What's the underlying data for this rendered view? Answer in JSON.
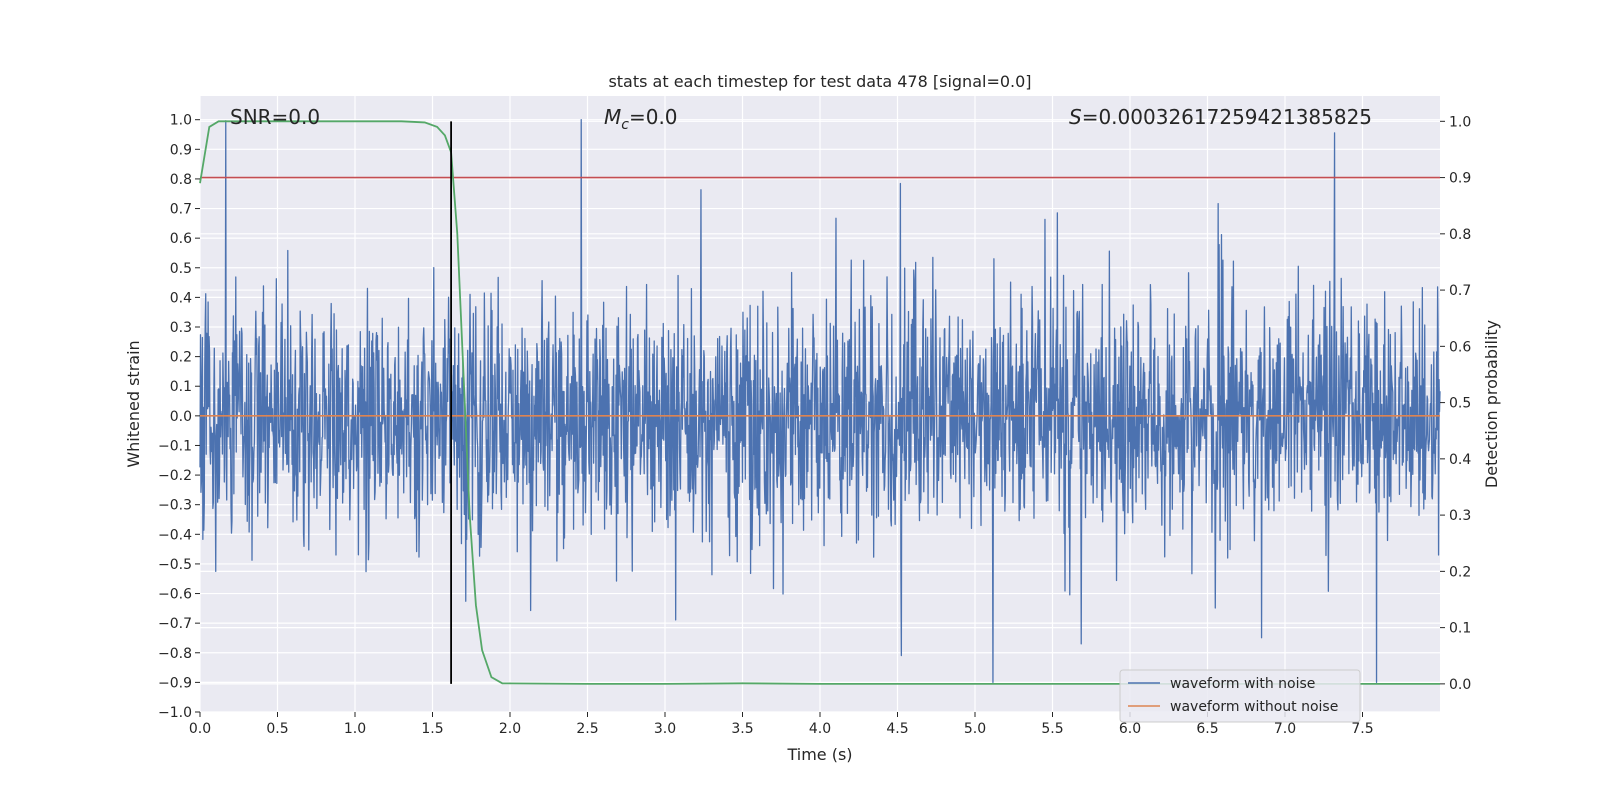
{
  "chart_data": {
    "type": "line",
    "title": "stats at each timestep for test data 478 [signal=0.0]",
    "xlabel": "Time (s)",
    "ylabel": "Whitened strain",
    "ylabel_right": "Detection probability",
    "xlim": [
      0.0,
      8.0
    ],
    "ylim": [
      -1.0,
      1.08
    ],
    "ylim_right": [
      -0.05,
      1.045
    ],
    "x_ticks": [
      "0.0",
      "0.5",
      "1.0",
      "1.5",
      "2.0",
      "2.5",
      "3.0",
      "3.5",
      "4.0",
      "4.5",
      "5.0",
      "5.5",
      "6.0",
      "6.5",
      "7.0",
      "7.5"
    ],
    "y_ticks": [
      "1.0",
      "0.9",
      "0.8",
      "0.7",
      "0.6",
      "0.5",
      "0.4",
      "0.3",
      "0.2",
      "0.1",
      "0.0",
      "−0.1",
      "−0.2",
      "−0.3",
      "−0.4",
      "−0.5",
      "−0.6",
      "−0.7",
      "−0.8",
      "−0.9",
      "−1.0"
    ],
    "y_right_ticks": [
      "1.0",
      "0.9",
      "0.8",
      "0.7",
      "0.6",
      "0.5",
      "0.4",
      "0.3",
      "0.2",
      "0.1",
      "0.0"
    ],
    "annotations": {
      "snr_label": "SNR=0.0",
      "mc_symbol": "M",
      "mc_sub": "c",
      "mc_value": "=0.0",
      "s_symbol": "S",
      "s_value": "=0.00032617259421385825"
    },
    "legend": {
      "placement": "lower-right",
      "entries": [
        "waveform with noise",
        "waveform without noise"
      ]
    },
    "series": [
      {
        "name": "waveform with noise",
        "axis": "left",
        "color": "#4c72b0",
        "amplitude_range": [
          -0.9,
          1.0
        ]
      },
      {
        "name": "waveform without noise",
        "axis": "left",
        "color": "#dd8452",
        "x": [
          0.0,
          8.0
        ],
        "y": [
          0.0,
          0.0
        ]
      },
      {
        "name": "detection probability",
        "axis": "right",
        "color": "#55a868",
        "x": [
          0.0,
          0.06,
          0.12,
          0.2,
          0.5,
          1.0,
          1.3,
          1.45,
          1.53,
          1.58,
          1.62,
          1.66,
          1.7,
          1.74,
          1.78,
          1.82,
          1.88,
          1.95,
          2.5,
          3.0,
          3.5,
          4.0,
          5.0,
          6.0,
          7.0,
          8.0
        ],
        "y": [
          0.89,
          0.99,
          1.0,
          1.0,
          1.0,
          1.0,
          1.0,
          0.998,
          0.99,
          0.975,
          0.945,
          0.8,
          0.55,
          0.3,
          0.14,
          0.06,
          0.012,
          0.001,
          0.0,
          0.0,
          0.001,
          0.0,
          0.0,
          0.0,
          0.0,
          0.0
        ]
      }
    ],
    "threshold_line": {
      "axis": "right",
      "value": 0.9,
      "color": "#c44e52"
    },
    "marker_line": {
      "axis": "right",
      "x": 1.62,
      "y_range": [
        0.0,
        1.0
      ],
      "color": "#000000"
    }
  }
}
